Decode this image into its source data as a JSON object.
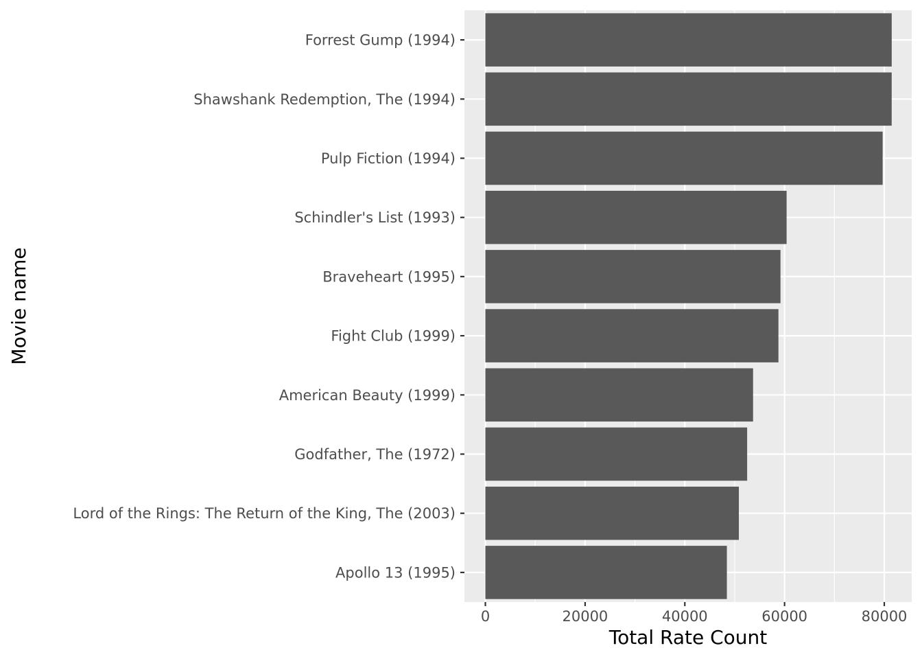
{
  "chart_data": {
    "type": "bar",
    "orientation": "horizontal",
    "title": "",
    "xlabel": "Total Rate Count",
    "ylabel": "Movie name",
    "xlim": [
      -4200,
      85500
    ],
    "xticks": [
      0,
      20000,
      40000,
      60000,
      80000
    ],
    "grid": true,
    "colors": {
      "panel_bg": "#ebebeb",
      "grid": "#ffffff",
      "bar": "#595959",
      "tick_text": "#4d4d4d",
      "tick_mark": "#333333",
      "title_text": "#000000"
    },
    "categories": [
      "Forrest Gump (1994)",
      "Shawshank Redemption, The (1994)",
      "Pulp Fiction (1994)",
      "Schindler's List (1993)",
      "Braveheart (1995)",
      "Fight Club (1999)",
      "American Beauty (1999)",
      "Godfather, The (1972)",
      "Lord of the Rings: The Return of the King, The (2003)",
      "Apollo 13 (1995)"
    ],
    "values": [
      81491,
      81482,
      79672,
      60411,
      59184,
      58773,
      53685,
      52498,
      50833,
      48431
    ]
  }
}
